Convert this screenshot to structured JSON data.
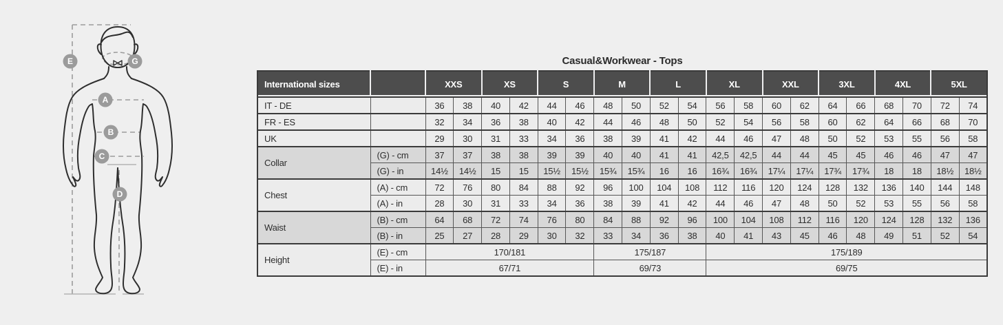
{
  "title": "Casual&Workwear - Tops",
  "colors": {
    "page_background": "#efefef",
    "header_background": "#4d4d4d",
    "header_text": "#ffffff",
    "row_light": "#ececec",
    "row_gray": "#d8d8d8",
    "border_dark": "#3a3a3a",
    "border_mid": "#555555",
    "border_soft": "#9a9a9a",
    "annotation_gray": "#9b9b9b",
    "text": "#2d2d2d"
  },
  "figure": {
    "description": "male body outline with measurement markers",
    "labels": {
      "height": "E",
      "collar": "G",
      "chest": "A",
      "waist": "B",
      "hip": "C",
      "inseam": "D"
    }
  },
  "table": {
    "header": {
      "label_col": "International sizes",
      "unit_col": "",
      "sizes": [
        "XXS",
        "XS",
        "S",
        "M",
        "L",
        "XL",
        "XXL",
        "3XL",
        "4XL",
        "5XL"
      ]
    },
    "rows": [
      {
        "type": "simple",
        "label": "IT - DE",
        "shade": "light",
        "values": [
          "36",
          "38",
          "40",
          "42",
          "44",
          "46",
          "48",
          "50",
          "52",
          "54",
          "56",
          "58",
          "60",
          "62",
          "64",
          "66",
          "68",
          "70",
          "72",
          "74"
        ]
      },
      {
        "type": "simple",
        "label": "FR - ES",
        "shade": "light",
        "values": [
          "32",
          "34",
          "36",
          "38",
          "40",
          "42",
          "44",
          "46",
          "48",
          "50",
          "52",
          "54",
          "56",
          "58",
          "60",
          "62",
          "64",
          "66",
          "68",
          "70"
        ]
      },
      {
        "type": "simple",
        "label": "UK",
        "shade": "light",
        "values": [
          "29",
          "30",
          "31",
          "33",
          "34",
          "36",
          "38",
          "39",
          "41",
          "42",
          "44",
          "46",
          "47",
          "48",
          "50",
          "52",
          "53",
          "55",
          "56",
          "58"
        ]
      },
      {
        "type": "group",
        "label": "Collar",
        "shade": "gray",
        "rows": [
          {
            "unit": "(G) - cm",
            "values": [
              "37",
              "37",
              "38",
              "38",
              "39",
              "39",
              "40",
              "40",
              "41",
              "41",
              "42,5",
              "42,5",
              "44",
              "44",
              "45",
              "45",
              "46",
              "46",
              "47",
              "47"
            ]
          },
          {
            "unit": "(G) - in",
            "values": [
              "14½",
              "14½",
              "15",
              "15",
              "15½",
              "15½",
              "15¾",
              "15¾",
              "16",
              "16",
              "16¾",
              "16¾",
              "17¼",
              "17¼",
              "17¾",
              "17¾",
              "18",
              "18",
              "18½",
              "18½"
            ]
          }
        ]
      },
      {
        "type": "group",
        "label": "Chest",
        "shade": "light",
        "rows": [
          {
            "unit": "(A) - cm",
            "values": [
              "72",
              "76",
              "80",
              "84",
              "88",
              "92",
              "96",
              "100",
              "104",
              "108",
              "112",
              "116",
              "120",
              "124",
              "128",
              "132",
              "136",
              "140",
              "144",
              "148"
            ]
          },
          {
            "unit": "(A) - in",
            "values": [
              "28",
              "30",
              "31",
              "33",
              "34",
              "36",
              "38",
              "39",
              "41",
              "42",
              "44",
              "46",
              "47",
              "48",
              "50",
              "52",
              "53",
              "55",
              "56",
              "58"
            ]
          }
        ]
      },
      {
        "type": "group",
        "label": "Waist",
        "shade": "gray",
        "rows": [
          {
            "unit": "(B) - cm",
            "values": [
              "64",
              "68",
              "72",
              "74",
              "76",
              "80",
              "84",
              "88",
              "92",
              "96",
              "100",
              "104",
              "108",
              "112",
              "116",
              "120",
              "124",
              "128",
              "132",
              "136"
            ]
          },
          {
            "unit": "(B) - in",
            "values": [
              "25",
              "27",
              "28",
              "29",
              "30",
              "32",
              "33",
              "34",
              "36",
              "38",
              "40",
              "41",
              "43",
              "45",
              "46",
              "48",
              "49",
              "51",
              "52",
              "54"
            ]
          }
        ]
      },
      {
        "type": "group",
        "label": "Height",
        "shade": "light",
        "rows": [
          {
            "unit": "(E) - cm",
            "spans": [
              {
                "text": "170/181",
                "cols": 6
              },
              {
                "text": "175/187",
                "cols": 4
              },
              {
                "text": "175/189",
                "cols": 10
              }
            ]
          },
          {
            "unit": "(E) - in",
            "spans": [
              {
                "text": "67/71",
                "cols": 6
              },
              {
                "text": "69/73",
                "cols": 4
              },
              {
                "text": "69/75",
                "cols": 10
              }
            ]
          }
        ]
      }
    ]
  }
}
